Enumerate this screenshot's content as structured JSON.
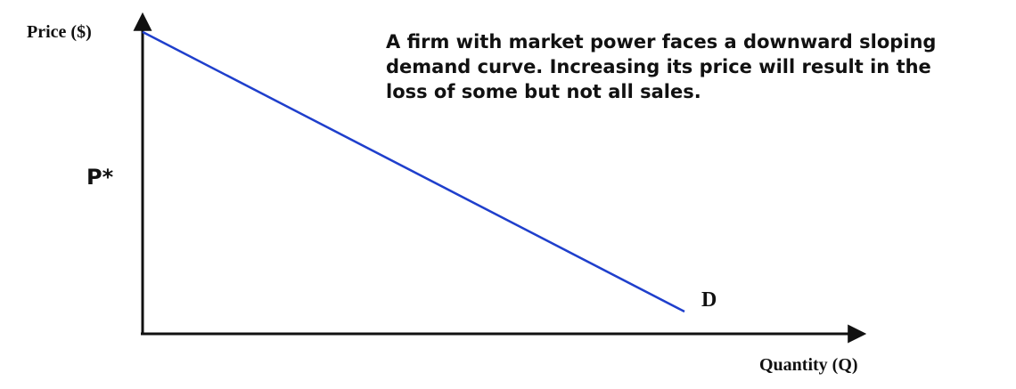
{
  "chart_data": {
    "type": "line",
    "ylabel": "Price ($)",
    "xlabel": "Quantity (Q)",
    "y_tick_label": "P*",
    "annotation": [
      "A firm with market power faces a downward sloping",
      "demand curve. Increasing its price will result in the",
      "loss of some but not all sales."
    ],
    "series": [
      {
        "name": "D",
        "x": [
          0,
          0.76
        ],
        "y": [
          0.95,
          0.07
        ]
      }
    ],
    "xlim": [
      0,
      1
    ],
    "ylim": [
      0,
      1
    ],
    "grid": false,
    "legend": "none",
    "colors": {
      "curve": "#1f3fcc",
      "axes": "#111111"
    }
  }
}
